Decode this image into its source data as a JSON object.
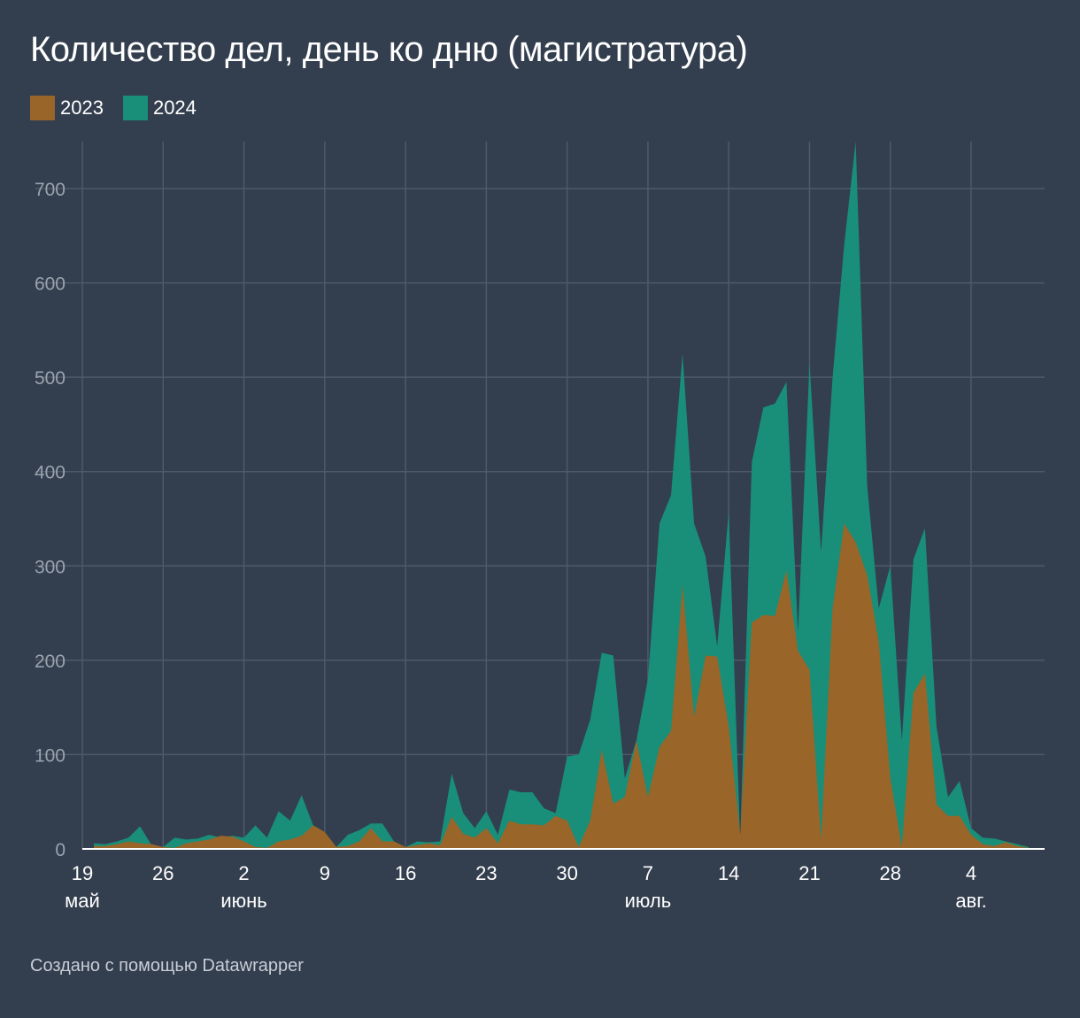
{
  "title": "Количество дел, день ко дню (магистратура)",
  "footer": "Создано с помощью Datawrapper",
  "colors": {
    "background": "#333e4e",
    "grid": "#4f5a69",
    "s2023": "#9a6529",
    "s2024": "#198e78"
  },
  "chart_data": {
    "type": "area",
    "title": "Количество дел, день ко дню (магистратура)",
    "xlabel": "",
    "ylabel": "",
    "ylim": [
      0,
      750
    ],
    "yticks": [
      0,
      100,
      200,
      300,
      400,
      500,
      600,
      700
    ],
    "x_start_label": "19 май",
    "x_day_offsets": [
      0,
      1,
      2,
      3,
      4,
      5,
      6,
      7,
      8,
      9,
      10,
      11,
      12,
      13,
      14,
      15,
      16,
      17,
      18,
      19,
      20,
      21,
      22,
      23,
      24,
      25,
      26,
      27,
      28,
      29,
      30,
      31,
      32,
      33,
      34,
      35,
      36,
      37,
      38,
      39,
      40,
      41,
      42,
      43,
      44,
      45,
      46,
      47,
      48,
      49,
      50,
      51,
      52,
      53,
      54,
      55,
      56,
      57,
      58,
      59,
      60,
      61,
      62,
      63,
      64,
      65,
      66,
      67,
      68,
      69,
      70,
      71,
      72,
      73,
      74,
      75,
      76,
      77,
      78,
      79,
      80,
      81,
      82,
      83
    ],
    "xticks": [
      {
        "day": 0,
        "label": "19",
        "month": "май"
      },
      {
        "day": 7,
        "label": "26",
        "month": ""
      },
      {
        "day": 14,
        "label": "2",
        "month": "июнь"
      },
      {
        "day": 21,
        "label": "9",
        "month": ""
      },
      {
        "day": 28,
        "label": "16",
        "month": ""
      },
      {
        "day": 35,
        "label": "23",
        "month": ""
      },
      {
        "day": 42,
        "label": "30",
        "month": ""
      },
      {
        "day": 49,
        "label": "7",
        "month": "июль"
      },
      {
        "day": 56,
        "label": "14",
        "month": ""
      },
      {
        "day": 63,
        "label": "21",
        "month": ""
      },
      {
        "day": 70,
        "label": "28",
        "month": ""
      },
      {
        "day": 77,
        "label": "4",
        "month": "авг."
      }
    ],
    "legend": {
      "position": "top-left"
    },
    "series": [
      {
        "name": "2024",
        "color": "#198e78",
        "values": [
          null,
          6,
          5,
          8,
          12,
          24,
          4,
          2,
          12,
          10,
          11,
          15,
          12,
          14,
          12,
          25,
          12,
          40,
          30,
          57,
          25,
          18,
          2,
          15,
          20,
          27,
          27,
          8,
          2,
          8,
          7,
          8,
          80,
          38,
          22,
          40,
          15,
          63,
          60,
          60,
          43,
          38,
          98,
          100,
          137,
          208,
          205,
          75,
          115,
          180,
          345,
          375,
          525,
          345,
          310,
          215,
          358,
          10,
          410,
          468,
          472,
          495,
          230,
          515,
          315,
          500,
          640,
          750,
          385,
          255,
          300,
          115,
          307,
          340,
          130,
          55,
          72,
          22,
          12,
          11,
          8,
          5,
          2,
          null
        ]
      },
      {
        "name": "2023",
        "color": "#9a6529",
        "values": [
          null,
          3,
          3,
          5,
          8,
          6,
          5,
          2,
          1,
          6,
          8,
          10,
          14,
          13,
          8,
          2,
          1,
          8,
          10,
          14,
          25,
          18,
          2,
          3,
          8,
          22,
          8,
          8,
          2,
          4,
          6,
          4,
          34,
          16,
          12,
          22,
          6,
          30,
          26,
          26,
          25,
          35,
          30,
          2,
          30,
          105,
          48,
          55,
          115,
          55,
          108,
          125,
          280,
          140,
          205,
          204,
          130,
          15,
          240,
          248,
          247,
          295,
          210,
          190,
          10,
          255,
          345,
          325,
          290,
          220,
          75,
          2,
          165,
          186,
          47,
          35,
          35,
          15,
          5,
          3,
          7,
          3,
          1,
          null
        ]
      }
    ]
  }
}
